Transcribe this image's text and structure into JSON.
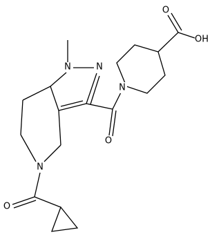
{
  "atoms": [
    "O",
    "OH",
    "N",
    "N",
    "N",
    "O",
    "N",
    "O"
  ]
}
